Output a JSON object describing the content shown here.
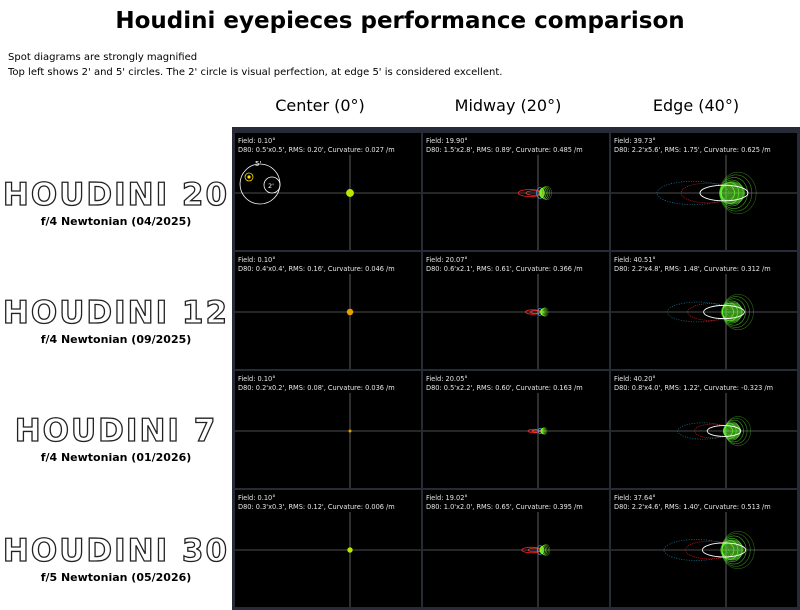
{
  "title": "Houdini eyepieces performance comparison",
  "intro": [
    "Spot diagrams are strongly magnified",
    "Top left shows 2' and 5' circles. The 2' circle is visual perfection, at edge 5' is considered excellent."
  ],
  "columns": [
    "Center (0°)",
    "Midway (20°)",
    "Edge (40°)"
  ],
  "legend": {
    "small_circle": "2'",
    "large_circle": "5'"
  },
  "rows": [
    {
      "name": "HOUDINI 20",
      "scope": "f/4 Newtonian (04/2025)",
      "cells": [
        {
          "field": "Field: 0.10°",
          "stats": "D80: 0.5'x0.5', RMS: 0.20', Curvature: 0.027 /m",
          "spot": "dot",
          "size": 0.22,
          "color": "#b6e800"
        },
        {
          "field": "Field: 19.90°",
          "stats": "D80: 1.5'x2.8', RMS: 0.89', Curvature: 0.485 /m",
          "spot": "comet",
          "size": 0.55,
          "color": "#80ff20"
        },
        {
          "field": "Field: 39.73°",
          "stats": "D80: 2.2'x5.6', RMS: 1.75', Curvature: 0.625 /m",
          "spot": "wide",
          "size": 1.0,
          "color": "#66ff33"
        }
      ]
    },
    {
      "name": "HOUDINI 12",
      "scope": "f/4 Newtonian (09/2025)",
      "cells": [
        {
          "field": "Field: 0.10°",
          "stats": "D80: 0.4'x0.4', RMS: 0.16', Curvature: 0.046 /m",
          "spot": "dot",
          "size": 0.18,
          "color": "#e8a000"
        },
        {
          "field": "Field: 20.07°",
          "stats": "D80: 0.6'x2.1', RMS: 0.61', Curvature: 0.366 /m",
          "spot": "comet",
          "size": 0.35,
          "color": "#80ff20"
        },
        {
          "field": "Field: 40.51°",
          "stats": "D80: 2.2'x4.8', RMS: 1.48', Curvature: 0.312 /m",
          "spot": "wide",
          "size": 0.85,
          "color": "#66ff33"
        }
      ]
    },
    {
      "name": "HOUDINI 7",
      "scope": "f/4 Newtonian (01/2026)",
      "cells": [
        {
          "field": "Field: 0.10°",
          "stats": "D80: 0.2'x0.2', RMS: 0.08', Curvature: 0.036 /m",
          "spot": "dot",
          "size": 0.08,
          "color": "#e0a000"
        },
        {
          "field": "Field: 20.05°",
          "stats": "D80: 0.5'x2.2', RMS: 0.60', Curvature: 0.163 /m",
          "spot": "comet",
          "size": 0.28,
          "color": "#80ff20"
        },
        {
          "field": "Field: 40.20°",
          "stats": "D80: 0.8'x4.0', RMS: 1.22', Curvature: -0.323 /m",
          "spot": "wide",
          "size": 0.7,
          "color": "#66ff33"
        }
      ]
    },
    {
      "name": "HOUDINI 30",
      "scope": "f/5 Newtonian (05/2026)",
      "cells": [
        {
          "field": "Field: 0.10°",
          "stats": "D80: 0.3'x0.3', RMS: 0.12', Curvature: 0.006 /m",
          "spot": "dot",
          "size": 0.15,
          "color": "#b6e800"
        },
        {
          "field": "Field: 19.02°",
          "stats": "D80: 1.0'x2.0', RMS: 0.65', Curvature: 0.395 /m",
          "spot": "comet",
          "size": 0.45,
          "color": "#80ff20"
        },
        {
          "field": "Field: 37.64°",
          "stats": "D80: 2.2'x4.6', RMS: 1.40', Curvature: 0.513 /m",
          "spot": "wide",
          "size": 0.9,
          "color": "#66ff33"
        }
      ]
    }
  ]
}
